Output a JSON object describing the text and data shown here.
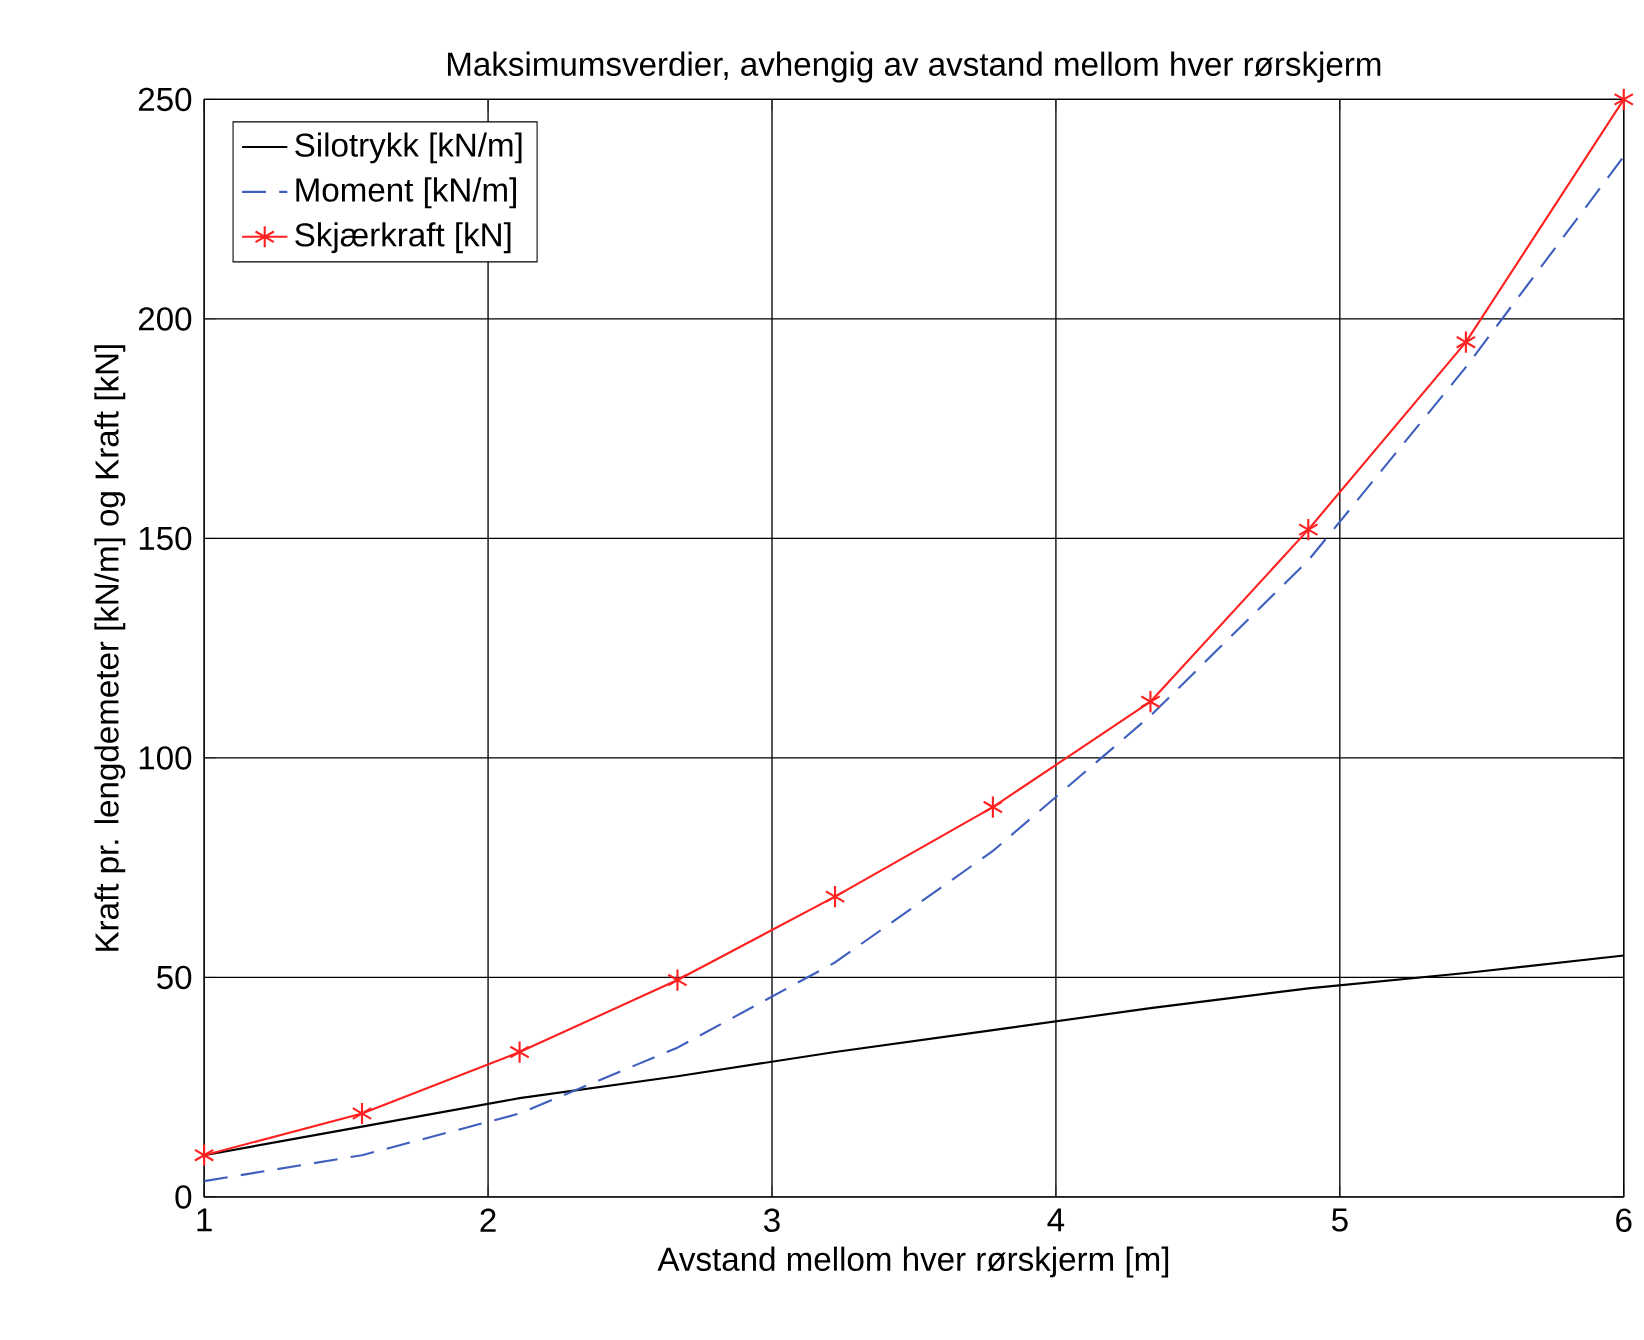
{
  "chart_data": {
    "type": "line",
    "title": "Maksimumsverdier, avhengig av avstand mellom hver rørskjerm",
    "xlabel": "Avstand mellom hver rørskjerm [m]",
    "ylabel": "Kraft pr. lengdemeter [kN/m] og Kraft [kN]",
    "x": [
      1,
      1.556,
      2.111,
      2.667,
      3.222,
      3.778,
      4.333,
      4.889,
      5.444,
      6
    ],
    "series": [
      {
        "name": "Silotrykk [kN/m]",
        "color": "#000000",
        "line_style": "solid",
        "marker": "none",
        "values": [
          9.5,
          16,
          22.5,
          27.5,
          33,
          38,
          43,
          47.5,
          51,
          55
        ]
      },
      {
        "name": "Moment [kN/m]",
        "color": "#3f5fbf",
        "line_style": "dashed",
        "marker": "none",
        "values": [
          3.6,
          9.5,
          19,
          34,
          53.4,
          78.8,
          109.6,
          145,
          189,
          237
        ]
      },
      {
        "name": "Skjærkraft [kN]",
        "color": "#ff2020",
        "line_style": "solid",
        "marker": "cross",
        "values": [
          9.5,
          19,
          33,
          49.4,
          68.4,
          88.8,
          112.8,
          152,
          194.7,
          250
        ]
      }
    ],
    "xlim": [
      1,
      6
    ],
    "ylim": [
      0,
      250
    ],
    "xticks": [
      1,
      2,
      3,
      4,
      5,
      6
    ],
    "yticks": [
      0,
      50,
      100,
      150,
      200,
      250
    ],
    "grid": true,
    "legend": "top left"
  }
}
